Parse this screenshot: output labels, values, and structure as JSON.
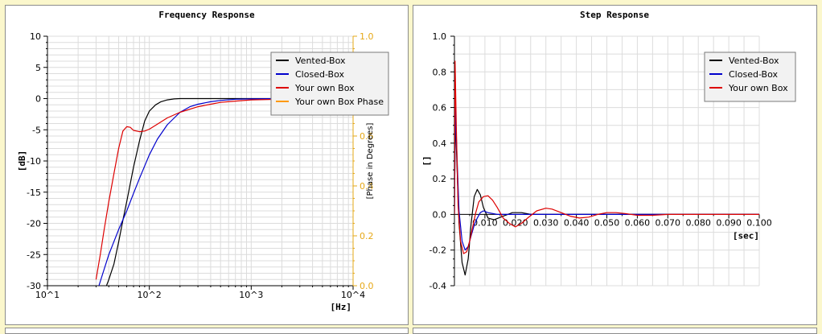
{
  "colors": {
    "background": "#fbf7cc",
    "panel": "#ffffff",
    "grid": "#dcdcdc",
    "secondary_axis": "#e6a817",
    "vented": "#000000",
    "closed": "#0000cc",
    "own": "#dd0000",
    "own_phase": "#ff9900"
  },
  "chart_data": [
    {
      "type": "line",
      "title": "Frequency Response",
      "xlabel": "[Hz]",
      "ylabel": "[dB]",
      "y2label": "[Phase in Degrees]",
      "x_scale": "log",
      "xlim": [
        10,
        10000
      ],
      "ylim": [
        -30,
        10
      ],
      "y2lim": [
        0.0,
        1.0
      ],
      "x_ticks": [
        10,
        100,
        1000,
        10000
      ],
      "x_tick_labels": [
        "10^1",
        "10^2",
        "10^3",
        "10^4"
      ],
      "y_ticks": [
        10,
        5,
        0,
        -5,
        -10,
        -15,
        -20,
        -25,
        -30
      ],
      "y_tick_labels": [
        "10",
        "5",
        "0",
        "-5",
        "-10",
        "-15",
        "-20",
        "-25",
        "-30"
      ],
      "y2_ticks": [
        1.0,
        0.8,
        0.6,
        0.4,
        0.2,
        0.0
      ],
      "y2_tick_labels": [
        "1.0",
        "0.8",
        "0.6",
        "0.4",
        "0.2",
        "0.0"
      ],
      "grid": true,
      "legend": "top-right",
      "series": [
        {
          "name": "Vented-Box",
          "color": "#000000",
          "x": [
            38,
            40,
            45,
            50,
            55,
            60,
            70,
            80,
            90,
            100,
            115,
            130,
            150,
            175,
            200,
            250,
            300,
            400,
            600,
            1000,
            2000,
            3000
          ],
          "y": [
            -30,
            -29,
            -26.5,
            -23,
            -19.5,
            -16.5,
            -11,
            -6.8,
            -3.6,
            -2,
            -1,
            -0.5,
            -0.2,
            -0.05,
            0,
            0,
            0,
            0,
            0,
            0,
            0,
            0
          ]
        },
        {
          "name": "Closed-Box",
          "color": "#0000cc",
          "x": [
            32,
            35,
            40,
            50,
            60,
            70,
            80,
            90,
            100,
            120,
            150,
            200,
            250,
            300,
            400,
            500,
            700,
            1000,
            2000,
            3000
          ],
          "y": [
            -30,
            -28,
            -25,
            -21,
            -18,
            -15.2,
            -12.8,
            -10.8,
            -9,
            -6.5,
            -4.2,
            -2.2,
            -1.3,
            -0.9,
            -0.5,
            -0.3,
            -0.1,
            -0.05,
            0,
            0
          ]
        },
        {
          "name": "Your own Box",
          "color": "#dd0000",
          "x": [
            30,
            33,
            36,
            40,
            45,
            50,
            55,
            60,
            65,
            70,
            80,
            90,
            100,
            120,
            150,
            200,
            300,
            400,
            500,
            700,
            1000,
            2000,
            3000
          ],
          "y": [
            -29,
            -25,
            -21,
            -16.5,
            -12,
            -8,
            -5.2,
            -4.5,
            -4.6,
            -5.1,
            -5.3,
            -5.2,
            -4.9,
            -4.1,
            -3.1,
            -2.2,
            -1.3,
            -0.9,
            -0.6,
            -0.4,
            -0.2,
            -0.1,
            0
          ]
        },
        {
          "name": "Your own Box Phase",
          "color": "#ff9900",
          "x": [],
          "y": []
        }
      ]
    },
    {
      "type": "line",
      "title": "Step Response",
      "xlabel": "[sec]",
      "ylabel": "[]",
      "xlim": [
        0,
        0.1
      ],
      "ylim": [
        -0.4,
        1.0
      ],
      "x_ticks": [
        0.01,
        0.02,
        0.03,
        0.04,
        0.05,
        0.06,
        0.07,
        0.08,
        0.09,
        0.1
      ],
      "x_tick_labels": [
        "0.010",
        "0.020",
        "0.030",
        "0.040",
        "0.050",
        "0.060",
        "0.070",
        "0.080",
        "0.090",
        "0.100"
      ],
      "y_ticks": [
        1.0,
        0.8,
        0.6,
        0.4,
        0.2,
        0.0,
        -0.2,
        -0.4
      ],
      "y_tick_labels": [
        "1.0",
        "0.8",
        "0.6",
        "0.4",
        "0.2",
        "0.0",
        "-0.2",
        "-0.4"
      ],
      "grid": true,
      "legend": "top-right",
      "series": [
        {
          "name": "Vented-Box",
          "color": "#000000",
          "x": [
            0,
            0.0003,
            0.0008,
            0.0015,
            0.0025,
            0.0035,
            0.0045,
            0.0055,
            0.0065,
            0.0075,
            0.0085,
            0.0095,
            0.011,
            0.013,
            0.016,
            0.019,
            0.022,
            0.025,
            0.03,
            0.04,
            0.06,
            0.1
          ],
          "y": [
            0,
            0.55,
            0.3,
            -0.05,
            -0.27,
            -0.34,
            -0.25,
            -0.05,
            0.1,
            0.14,
            0.11,
            0.04,
            -0.02,
            -0.03,
            -0.01,
            0.01,
            0.01,
            0,
            0,
            0,
            0,
            0
          ]
        },
        {
          "name": "Closed-Box",
          "color": "#0000cc",
          "x": [
            0,
            0.0003,
            0.0008,
            0.0015,
            0.0025,
            0.0035,
            0.0045,
            0.0055,
            0.0065,
            0.0075,
            0.0085,
            0.0095,
            0.011,
            0.014,
            0.018,
            0.025,
            0.04,
            0.1
          ],
          "y": [
            0,
            0.6,
            0.35,
            0.02,
            -0.15,
            -0.2,
            -0.18,
            -0.12,
            -0.06,
            -0.02,
            0.01,
            0.02,
            0.01,
            0,
            0,
            0,
            0,
            0
          ]
        },
        {
          "name": "Your own Box",
          "color": "#dd0000",
          "x": [
            0,
            0.0002,
            0.0006,
            0.0012,
            0.002,
            0.003,
            0.004,
            0.005,
            0.006,
            0.007,
            0.008,
            0.0095,
            0.011,
            0.0125,
            0.014,
            0.016,
            0.018,
            0.02,
            0.022,
            0.024,
            0.027,
            0.03,
            0.032,
            0.035,
            0.038,
            0.041,
            0.044,
            0.047,
            0.05,
            0.053,
            0.056,
            0.06,
            0.065,
            0.07,
            0.08,
            0.1
          ],
          "y": [
            0,
            0.86,
            0.5,
            0.05,
            -0.15,
            -0.22,
            -0.21,
            -0.15,
            -0.07,
            0.01,
            0.07,
            0.1,
            0.105,
            0.08,
            0.04,
            -0.02,
            -0.05,
            -0.07,
            -0.05,
            -0.02,
            0.02,
            0.035,
            0.03,
            0.01,
            -0.01,
            -0.02,
            -0.015,
            0,
            0.01,
            0.01,
            0.005,
            -0.005,
            -0.005,
            0,
            0,
            0
          ]
        }
      ]
    }
  ]
}
